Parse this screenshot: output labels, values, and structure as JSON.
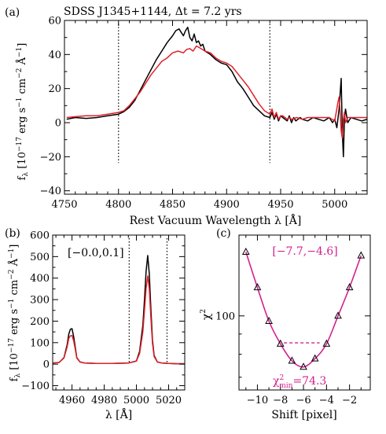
{
  "chart_data": [
    {
      "panel_label": "(a)",
      "title": "SDSS J1345+1144, Δt = 7.2 yrs",
      "type": "line",
      "xlabel": "Rest Vacuum Wavelength λ [Å]",
      "ylabel_base": "f",
      "ylabel_sub": "λ",
      "ylabel_rest": " [10",
      "ylabel_exp1": "−17",
      "ylabel_units": " erg s",
      "ylabel_exp2": "−1",
      "ylabel_cm": " cm",
      "ylabel_exp3": "−2",
      "ylabel_ang": " Å",
      "ylabel_exp4": "−1",
      "ylabel_end": "]",
      "xlim": [
        4750,
        5030
      ],
      "ylim": [
        -42,
        60
      ],
      "xticks": [
        4750,
        4800,
        4850,
        4900,
        4950,
        5000
      ],
      "yticks": [
        -40,
        -20,
        0,
        20,
        40,
        60
      ],
      "vlines": [
        4800,
        4940
      ],
      "series": [
        {
          "color": "#000000",
          "x": [
            4752,
            4760,
            4770,
            4780,
            4790,
            4800,
            4805,
            4810,
            4815,
            4820,
            4825,
            4830,
            4835,
            4840,
            4845,
            4850,
            4853,
            4856,
            4858,
            4860,
            4862,
            4864,
            4866,
            4868,
            4870,
            4872,
            4874,
            4876,
            4878,
            4880,
            4885,
            4890,
            4895,
            4900,
            4905,
            4910,
            4915,
            4920,
            4925,
            4930,
            4935,
            4940,
            4942,
            4944,
            4946,
            4948,
            4950,
            4952,
            4954,
            4956,
            4958,
            4960,
            4962,
            4964,
            4966,
            4968,
            4970,
            4975,
            4980,
            4985,
            4990,
            4995,
            4998,
            5000,
            5002,
            5004,
            5006,
            5007,
            5008,
            5009,
            5010,
            5012,
            5015,
            5020,
            5025,
            5030
          ],
          "y": [
            2,
            3,
            2.5,
            3,
            4,
            5,
            6.5,
            9,
            13,
            19,
            25,
            31,
            37,
            42,
            47,
            51,
            54,
            55,
            53,
            51,
            54,
            56,
            50,
            48,
            52,
            47,
            48,
            45,
            46,
            42,
            40,
            37,
            35,
            34,
            30,
            24,
            20,
            15,
            10,
            7,
            4,
            3,
            6,
            2,
            5,
            1,
            4,
            3,
            2,
            1,
            4,
            0,
            3,
            1,
            2,
            3,
            2,
            1,
            3,
            2,
            1,
            3,
            0,
            2,
            -3,
            8,
            26,
            -5,
            -20,
            2,
            8,
            0,
            3,
            2,
            1,
            2
          ]
        },
        {
          "color": "#e0202a",
          "x": [
            4752,
            4760,
            4770,
            4780,
            4790,
            4800,
            4805,
            4810,
            4815,
            4820,
            4825,
            4830,
            4835,
            4840,
            4845,
            4850,
            4855,
            4860,
            4863,
            4866,
            4869,
            4872,
            4875,
            4880,
            4885,
            4890,
            4895,
            4900,
            4905,
            4910,
            4915,
            4920,
            4925,
            4930,
            4935,
            4940,
            4942,
            4944,
            4946,
            4948,
            4950,
            4952,
            4954,
            4956,
            4958,
            4960,
            4965,
            4970,
            4975,
            4980,
            4985,
            4990,
            4995,
            5000,
            5003,
            5004,
            5005,
            5006,
            5007,
            5008,
            5009,
            5010,
            5012,
            5015,
            5020,
            5025,
            5030
          ],
          "y": [
            3,
            3.5,
            4,
            4,
            5,
            6,
            7,
            10,
            14,
            18,
            23,
            28,
            32,
            36,
            38,
            41,
            42,
            41,
            43,
            43.5,
            42,
            45,
            44,
            42,
            41,
            38,
            36,
            35,
            33,
            29,
            25,
            21,
            16,
            11,
            7,
            5,
            8,
            3,
            6,
            2,
            4,
            4,
            3,
            2,
            3,
            2,
            3,
            2,
            3,
            3,
            3,
            3,
            3,
            1,
            12,
            15,
            7,
            -5,
            -9,
            2,
            6,
            0,
            3,
            3,
            3,
            3,
            3
          ]
        }
      ]
    },
    {
      "panel_label": "(b)",
      "type": "line",
      "annotation": "[−0.0,0.1]",
      "xlabel": "λ [Å]",
      "ylabel_base": "f",
      "ylabel_sub": "λ",
      "ylabel_rest": " [10",
      "ylabel_exp1": "−17",
      "ylabel_units": " erg s",
      "ylabel_exp2": "−1",
      "ylabel_cm": " cm",
      "ylabel_exp3": "−2",
      "ylabel_ang": " Å",
      "ylabel_exp4": "−1",
      "ylabel_end": "]",
      "xlim": [
        4948,
        5030
      ],
      "ylim": [
        -120,
        600
      ],
      "xticks": [
        4960,
        4980,
        5000,
        5020
      ],
      "yticks": [
        -100,
        0,
        100,
        200,
        300,
        400,
        500,
        600
      ],
      "vlines": [
        4995.5,
        5019
      ],
      "series": [
        {
          "color": "#000000",
          "x": [
            4948,
            4952,
            4955,
            4957,
            4958,
            4959,
            4960,
            4961,
            4962,
            4963,
            4965,
            4968,
            4975,
            4985,
            4995,
            5000,
            5002,
            5004,
            5005,
            5006,
            5007,
            5008,
            5009,
            5010,
            5011,
            5013,
            5016,
            5020,
            5025,
            5030
          ],
          "y": [
            5,
            8,
            30,
            90,
            140,
            162,
            165,
            130,
            80,
            30,
            10,
            5,
            3,
            3,
            5,
            15,
            60,
            180,
            300,
            430,
            505,
            420,
            250,
            110,
            40,
            10,
            5,
            3,
            2,
            2
          ]
        },
        {
          "color": "#e0202a",
          "x": [
            4948,
            4952,
            4955,
            4957,
            4958,
            4959,
            4960,
            4961,
            4962,
            4963,
            4965,
            4968,
            4975,
            4985,
            4995,
            5000,
            5002,
            5004,
            5005,
            5006,
            5007,
            5008,
            5009,
            5010,
            5011,
            5013,
            5016,
            5020,
            5025,
            5030
          ],
          "y": [
            5,
            8,
            28,
            80,
            120,
            132,
            133,
            110,
            70,
            28,
            10,
            5,
            3,
            3,
            5,
            14,
            50,
            150,
            250,
            350,
            410,
            350,
            210,
            95,
            35,
            10,
            5,
            3,
            2,
            2
          ]
        }
      ]
    },
    {
      "panel_label": "(c)",
      "type": "scatter",
      "annotation": "[−7.7,−4.6]",
      "chi_min_base": "χ",
      "chi_min_exp": "2",
      "chi_min_sub": "min",
      "chi_min_value": "=74.3",
      "xlabel": "Shift [pixel]",
      "ylabel_base": "χ",
      "ylabel_exp": "2",
      "ylog": true,
      "xlim": [
        -11.6,
        -0.2
      ],
      "ylim": [
        65,
        160
      ],
      "xticks": [
        -10,
        -8,
        -6,
        -4,
        -2
      ],
      "yticks": [
        100
      ],
      "points": {
        "x": [
          -11,
          -10,
          -9,
          -8,
          -7,
          -6,
          -5,
          -4,
          -3,
          -2,
          -1
        ],
        "y": [
          145,
          118,
          97,
          85,
          77,
          74.3,
          78,
          85,
          100,
          118,
          142
        ]
      },
      "curve_color": "#d4208f",
      "interval": [
        -7.7,
        -4.6
      ],
      "interval_level": 85.5
    }
  ]
}
